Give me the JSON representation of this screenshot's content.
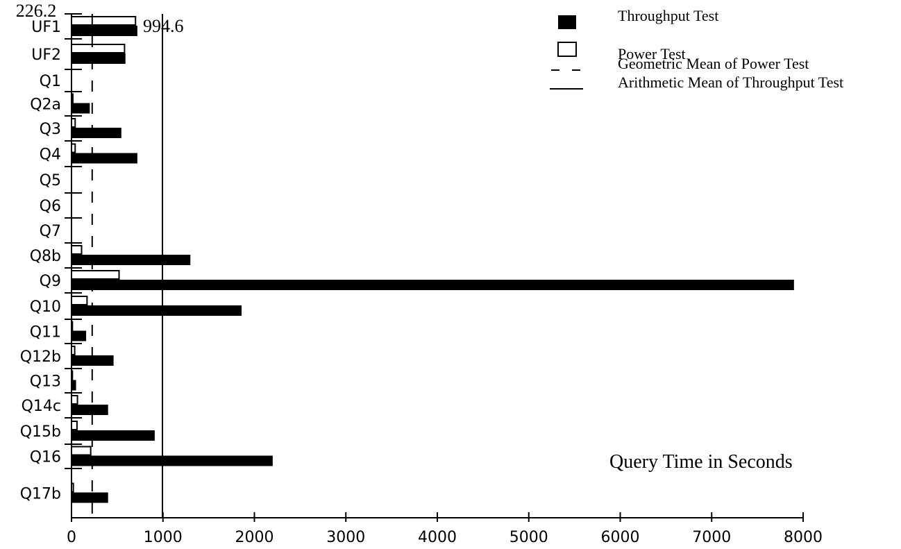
{
  "chart_data": {
    "type": "bar",
    "orientation": "horizontal",
    "title": "",
    "xlabel": "Query Time in Seconds",
    "ylabel": "",
    "xlim": [
      0,
      8000
    ],
    "x_ticks": [
      "0",
      "1000",
      "2000",
      "3000",
      "4000",
      "5000",
      "6000",
      "7000",
      "8000"
    ],
    "categories": [
      "UF1",
      "UF2",
      "Q1",
      "Q2a",
      "Q3",
      "Q4",
      "Q5",
      "Q6",
      "Q7",
      "Q8b",
      "Q9",
      "Q10",
      "Q11",
      "Q12b",
      "Q13",
      "Q14c",
      "Q15b",
      "Q16",
      "Q17b"
    ],
    "series": [
      {
        "name": "Power Test",
        "style": "hollow",
        "values": [
          700,
          580,
          0,
          15,
          40,
          40,
          0,
          0,
          0,
          110,
          520,
          170,
          10,
          35,
          10,
          65,
          60,
          210,
          20
        ]
      },
      {
        "name": "Throughput Test",
        "style": "filled",
        "values": [
          720,
          590,
          0,
          200,
          545,
          720,
          0,
          0,
          0,
          1300,
          7900,
          1860,
          160,
          460,
          50,
          400,
          910,
          2200,
          400
        ]
      }
    ],
    "reference_lines": [
      {
        "name": "Geometric Mean of Power Test",
        "style": "dashed",
        "value": 226.2,
        "label": "226.2"
      },
      {
        "name": "Arithmetic Mean of Throughput Test",
        "style": "solid",
        "value": 994.6,
        "label": "994.6"
      }
    ],
    "legend": {
      "placement": "top-right",
      "items": [
        {
          "label": "Throughput Test",
          "symbol": "filled"
        },
        {
          "label": "Power Test",
          "symbol": "hollow"
        },
        {
          "label": "Geometric Mean of Power Test",
          "symbol": "dashed"
        },
        {
          "label": "Arithmetic Mean of Throughput Test",
          "symbol": "solid"
        }
      ]
    },
    "colors": {
      "bar": "#000000",
      "background": "#ffffff"
    }
  }
}
